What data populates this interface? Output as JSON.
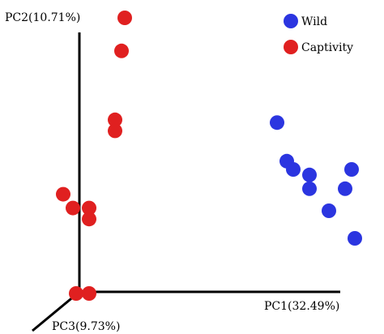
{
  "chart_data": {
    "type": "scatter",
    "projection": "3d",
    "axes": {
      "pc1_label": "PC1(32.49%)",
      "pc2_label": "PC2(10.71%)",
      "pc3_label": "PC3(9.73%)"
    },
    "legend": {
      "placement": "top-right",
      "entries": [
        {
          "name": "Wild",
          "color": "#2b35e0",
          "marker": "sphere"
        },
        {
          "name": "Captivity",
          "color": "#e02020",
          "marker": "sphere"
        }
      ]
    },
    "series": [
      {
        "name": "Wild",
        "color": "#2b35e0",
        "points": [
          {
            "pc1": 0.62,
            "pc2": 0.62
          },
          {
            "pc1": 0.65,
            "pc2": 0.48
          },
          {
            "pc1": 0.67,
            "pc2": 0.45
          },
          {
            "pc1": 0.72,
            "pc2": 0.43
          },
          {
            "pc1": 0.72,
            "pc2": 0.38
          },
          {
            "pc1": 0.85,
            "pc2": 0.45
          },
          {
            "pc1": 0.83,
            "pc2": 0.38
          },
          {
            "pc1": 0.78,
            "pc2": 0.3
          },
          {
            "pc1": 0.86,
            "pc2": 0.2
          }
        ]
      },
      {
        "name": "Captivity",
        "color": "#e02020",
        "points": [
          {
            "pc1": 0.15,
            "pc2": 1.0
          },
          {
            "pc1": 0.14,
            "pc2": 0.88
          },
          {
            "pc1": 0.12,
            "pc2": 0.63
          },
          {
            "pc1": 0.12,
            "pc2": 0.59
          },
          {
            "pc1": -0.04,
            "pc2": 0.36
          },
          {
            "pc1": -0.01,
            "pc2": 0.31
          },
          {
            "pc1": 0.04,
            "pc2": 0.31
          },
          {
            "pc1": 0.04,
            "pc2": 0.27
          },
          {
            "pc1": 0.0,
            "pc2": 0.0
          },
          {
            "pc1": 0.04,
            "pc2": 0.0
          }
        ]
      }
    ]
  }
}
